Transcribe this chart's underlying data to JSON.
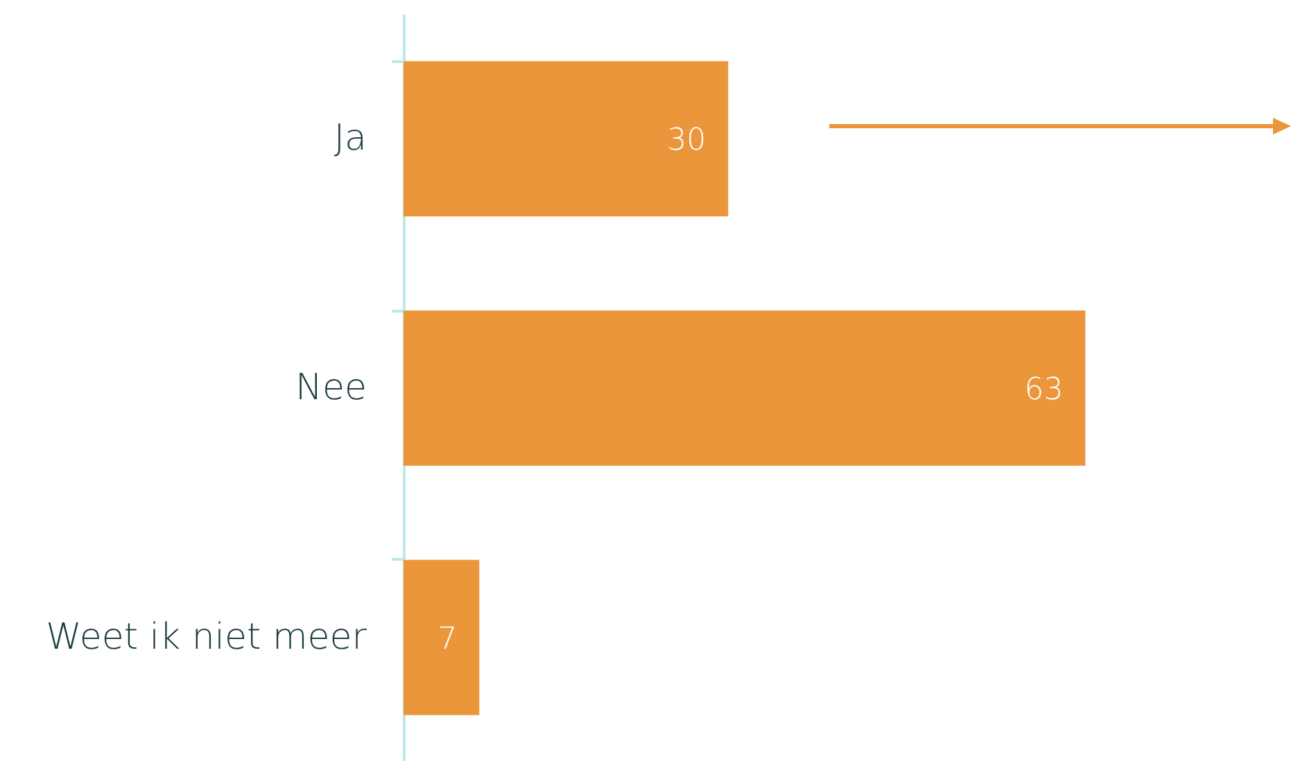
{
  "chart_data": {
    "type": "bar",
    "orientation": "horizontal",
    "categories": [
      "Ja",
      "Nee",
      "Weet ik niet meer"
    ],
    "values": [
      30,
      63,
      7
    ],
    "color": "#eb963b",
    "xlim": [
      0,
      82
    ],
    "data_labels": true
  }
}
